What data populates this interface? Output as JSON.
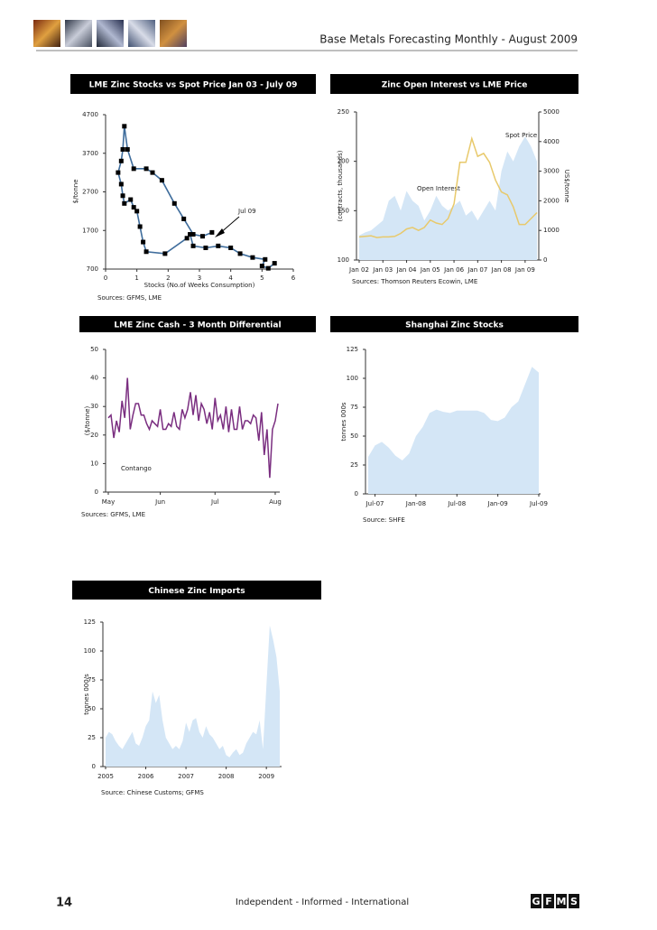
{
  "header": {
    "title": "Base Metals Forecasting Monthly - August 2009"
  },
  "chart_data": [
    {
      "type": "scatter",
      "title": "LME Zinc Stocks vs Spot Price Jan 03 - July 09",
      "xlabel": "Stocks (No.of Weeks Consumption)",
      "ylabel": "$/tonne",
      "xlim": [
        0,
        6
      ],
      "xticks": [
        0,
        1,
        2,
        3,
        4,
        5,
        6
      ],
      "ylim": [
        700,
        4700
      ],
      "yticks": [
        700,
        1700,
        2700,
        3700,
        4700
      ],
      "x": [
        5.4,
        5.2,
        5.0,
        5.1,
        4.7,
        4.3,
        4.0,
        3.6,
        3.2,
        2.8,
        2.7,
        2.6,
        1.9,
        1.3,
        1.2,
        1.1,
        1.0,
        0.9,
        0.8,
        0.6,
        0.55,
        0.5,
        0.4,
        0.5,
        0.55,
        0.6,
        0.7,
        0.9,
        1.3,
        1.5,
        1.8,
        2.2,
        2.5,
        2.8,
        3.1,
        3.4
      ],
      "values": [
        850,
        720,
        780,
        950,
        1000,
        1100,
        1250,
        1300,
        1250,
        1300,
        1600,
        1500,
        1100,
        1150,
        1400,
        1800,
        2200,
        2300,
        2500,
        2400,
        2600,
        2900,
        3200,
        3500,
        3800,
        4400,
        3800,
        3300,
        3300,
        3200,
        3000,
        2400,
        2000,
        1600,
        1550,
        1650
      ],
      "line_color": "#3f6d9c",
      "marker_color": "#000000",
      "annotation": "Jul 09",
      "source": "Sources: GFMS, LME"
    },
    {
      "type": "combo",
      "title": "Zinc Open Interest vs LME Price",
      "ylabel": "(contracts, thousands)",
      "y2label": "US$/tonne",
      "categories": [
        "Jan 02",
        null,
        null,
        null,
        "Jan 03",
        null,
        null,
        null,
        "Jan 04",
        null,
        null,
        null,
        "Jan 05",
        null,
        null,
        null,
        "Jan 06",
        null,
        null,
        null,
        "Jan 07",
        null,
        null,
        null,
        "Jan 08",
        null,
        null,
        null,
        "Jan 09",
        null,
        null
      ],
      "ylim": [
        100,
        250
      ],
      "yticks": [
        100,
        150,
        200,
        250
      ],
      "y2lim": [
        0,
        5000
      ],
      "y2ticks": [
        0,
        1000,
        2000,
        3000,
        4000,
        5000
      ],
      "series": [
        {
          "name": "Open Interest",
          "kind": "area",
          "color": "#d4e6f6",
          "values": [
            125,
            128,
            130,
            135,
            140,
            160,
            165,
            150,
            170,
            160,
            155,
            140,
            150,
            165,
            155,
            150,
            155,
            160,
            145,
            150,
            140,
            150,
            160,
            150,
            190,
            210,
            200,
            215,
            225,
            215,
            200
          ]
        },
        {
          "name": "Spot Price",
          "kind": "line",
          "axis": "y2",
          "color": "#e8c96b",
          "values": [
            780,
            800,
            820,
            760,
            780,
            780,
            800,
            900,
            1050,
            1100,
            1000,
            1100,
            1350,
            1250,
            1200,
            1400,
            1900,
            3300,
            3300,
            4100,
            3500,
            3600,
            3300,
            2700,
            2300,
            2200,
            1800,
            1200,
            1200,
            1400,
            1600
          ]
        }
      ],
      "source": "Sources: Thomson Reuters Ecowin, LME"
    },
    {
      "type": "line",
      "title": "LME Zinc Cash - 3 Month Differential",
      "ylabel": "($/tonne)",
      "categories": [
        "May",
        null,
        null,
        null,
        null,
        null,
        null,
        null,
        null,
        null,
        null,
        null,
        null,
        null,
        null,
        null,
        null,
        null,
        null,
        "Jun",
        null,
        null,
        null,
        null,
        null,
        null,
        null,
        null,
        null,
        null,
        null,
        null,
        null,
        null,
        null,
        null,
        null,
        null,
        null,
        "Jul",
        null,
        null,
        null,
        null,
        null,
        null,
        null,
        null,
        null,
        null,
        null,
        null,
        null,
        null,
        null,
        null,
        null,
        null,
        null,
        null,
        null,
        "Aug",
        null
      ],
      "values": [
        26,
        27,
        19,
        25,
        21,
        32,
        26,
        40,
        22,
        27,
        31,
        31,
        27,
        27,
        24,
        22,
        25,
        24,
        23,
        29,
        22,
        22,
        24,
        23,
        28,
        23,
        22,
        29,
        26,
        29,
        35,
        27,
        34,
        25,
        31,
        29,
        24,
        28,
        22,
        33,
        25,
        27,
        22,
        30,
        21,
        29,
        22,
        22,
        30,
        22,
        25,
        25,
        24,
        27,
        26,
        18,
        28,
        13,
        22,
        5,
        22,
        25,
        31
      ],
      "color": "#7a2e80",
      "ylim": [
        0,
        50
      ],
      "yticks": [
        0,
        10,
        20,
        30,
        40,
        50
      ],
      "annotation": "Contango",
      "source": "Sources: GFMS, LME"
    },
    {
      "type": "area",
      "title": "Shanghai Zinc Stocks",
      "ylabel": "tonnes 000s",
      "categories": [
        null,
        "Jul-07",
        null,
        null,
        null,
        null,
        null,
        "Jan-08",
        null,
        null,
        null,
        null,
        null,
        "Jul-08",
        null,
        null,
        null,
        null,
        null,
        "Jan-09",
        null,
        null,
        null,
        null,
        null,
        "Jul-09"
      ],
      "values": [
        32,
        42,
        45,
        40,
        33,
        29,
        35,
        50,
        58,
        70,
        73,
        71,
        70,
        72,
        72,
        72,
        72,
        70,
        64,
        63,
        66,
        75,
        80,
        95,
        110,
        105
      ],
      "color": "#d4e6f6",
      "ylim": [
        0,
        125
      ],
      "yticks": [
        0,
        25,
        50,
        75,
        100,
        125
      ],
      "source": "Source: SHFE"
    },
    {
      "type": "area",
      "title": "Chinese Zinc Imports",
      "ylabel": "tonnes 000/s",
      "categories": [
        "2005",
        null,
        null,
        null,
        null,
        null,
        null,
        null,
        null,
        null,
        null,
        null,
        "2006",
        null,
        null,
        null,
        null,
        null,
        null,
        null,
        null,
        null,
        null,
        null,
        "2007",
        null,
        null,
        null,
        null,
        null,
        null,
        null,
        null,
        null,
        null,
        null,
        "2008",
        null,
        null,
        null,
        null,
        null,
        null,
        null,
        null,
        null,
        null,
        null,
        "2009",
        null,
        null,
        null,
        null
      ],
      "values": [
        25,
        30,
        28,
        22,
        18,
        15,
        20,
        25,
        30,
        20,
        18,
        25,
        35,
        40,
        65,
        55,
        62,
        40,
        25,
        20,
        15,
        18,
        15,
        22,
        38,
        30,
        40,
        42,
        30,
        25,
        35,
        28,
        25,
        20,
        15,
        18,
        10,
        8,
        12,
        15,
        10,
        12,
        20,
        25,
        30,
        28,
        40,
        15,
        70,
        122,
        110,
        95,
        65
      ],
      "color": "#d4e6f6",
      "ylim": [
        0,
        125
      ],
      "yticks": [
        0,
        25,
        50,
        75,
        100,
        125
      ],
      "source": "Source: Chinese Customs; GFMS"
    }
  ],
  "footer": {
    "page_number": "14",
    "tagline": "Independent - Informed - International",
    "logo": [
      "G",
      "F",
      "M",
      "S"
    ]
  }
}
